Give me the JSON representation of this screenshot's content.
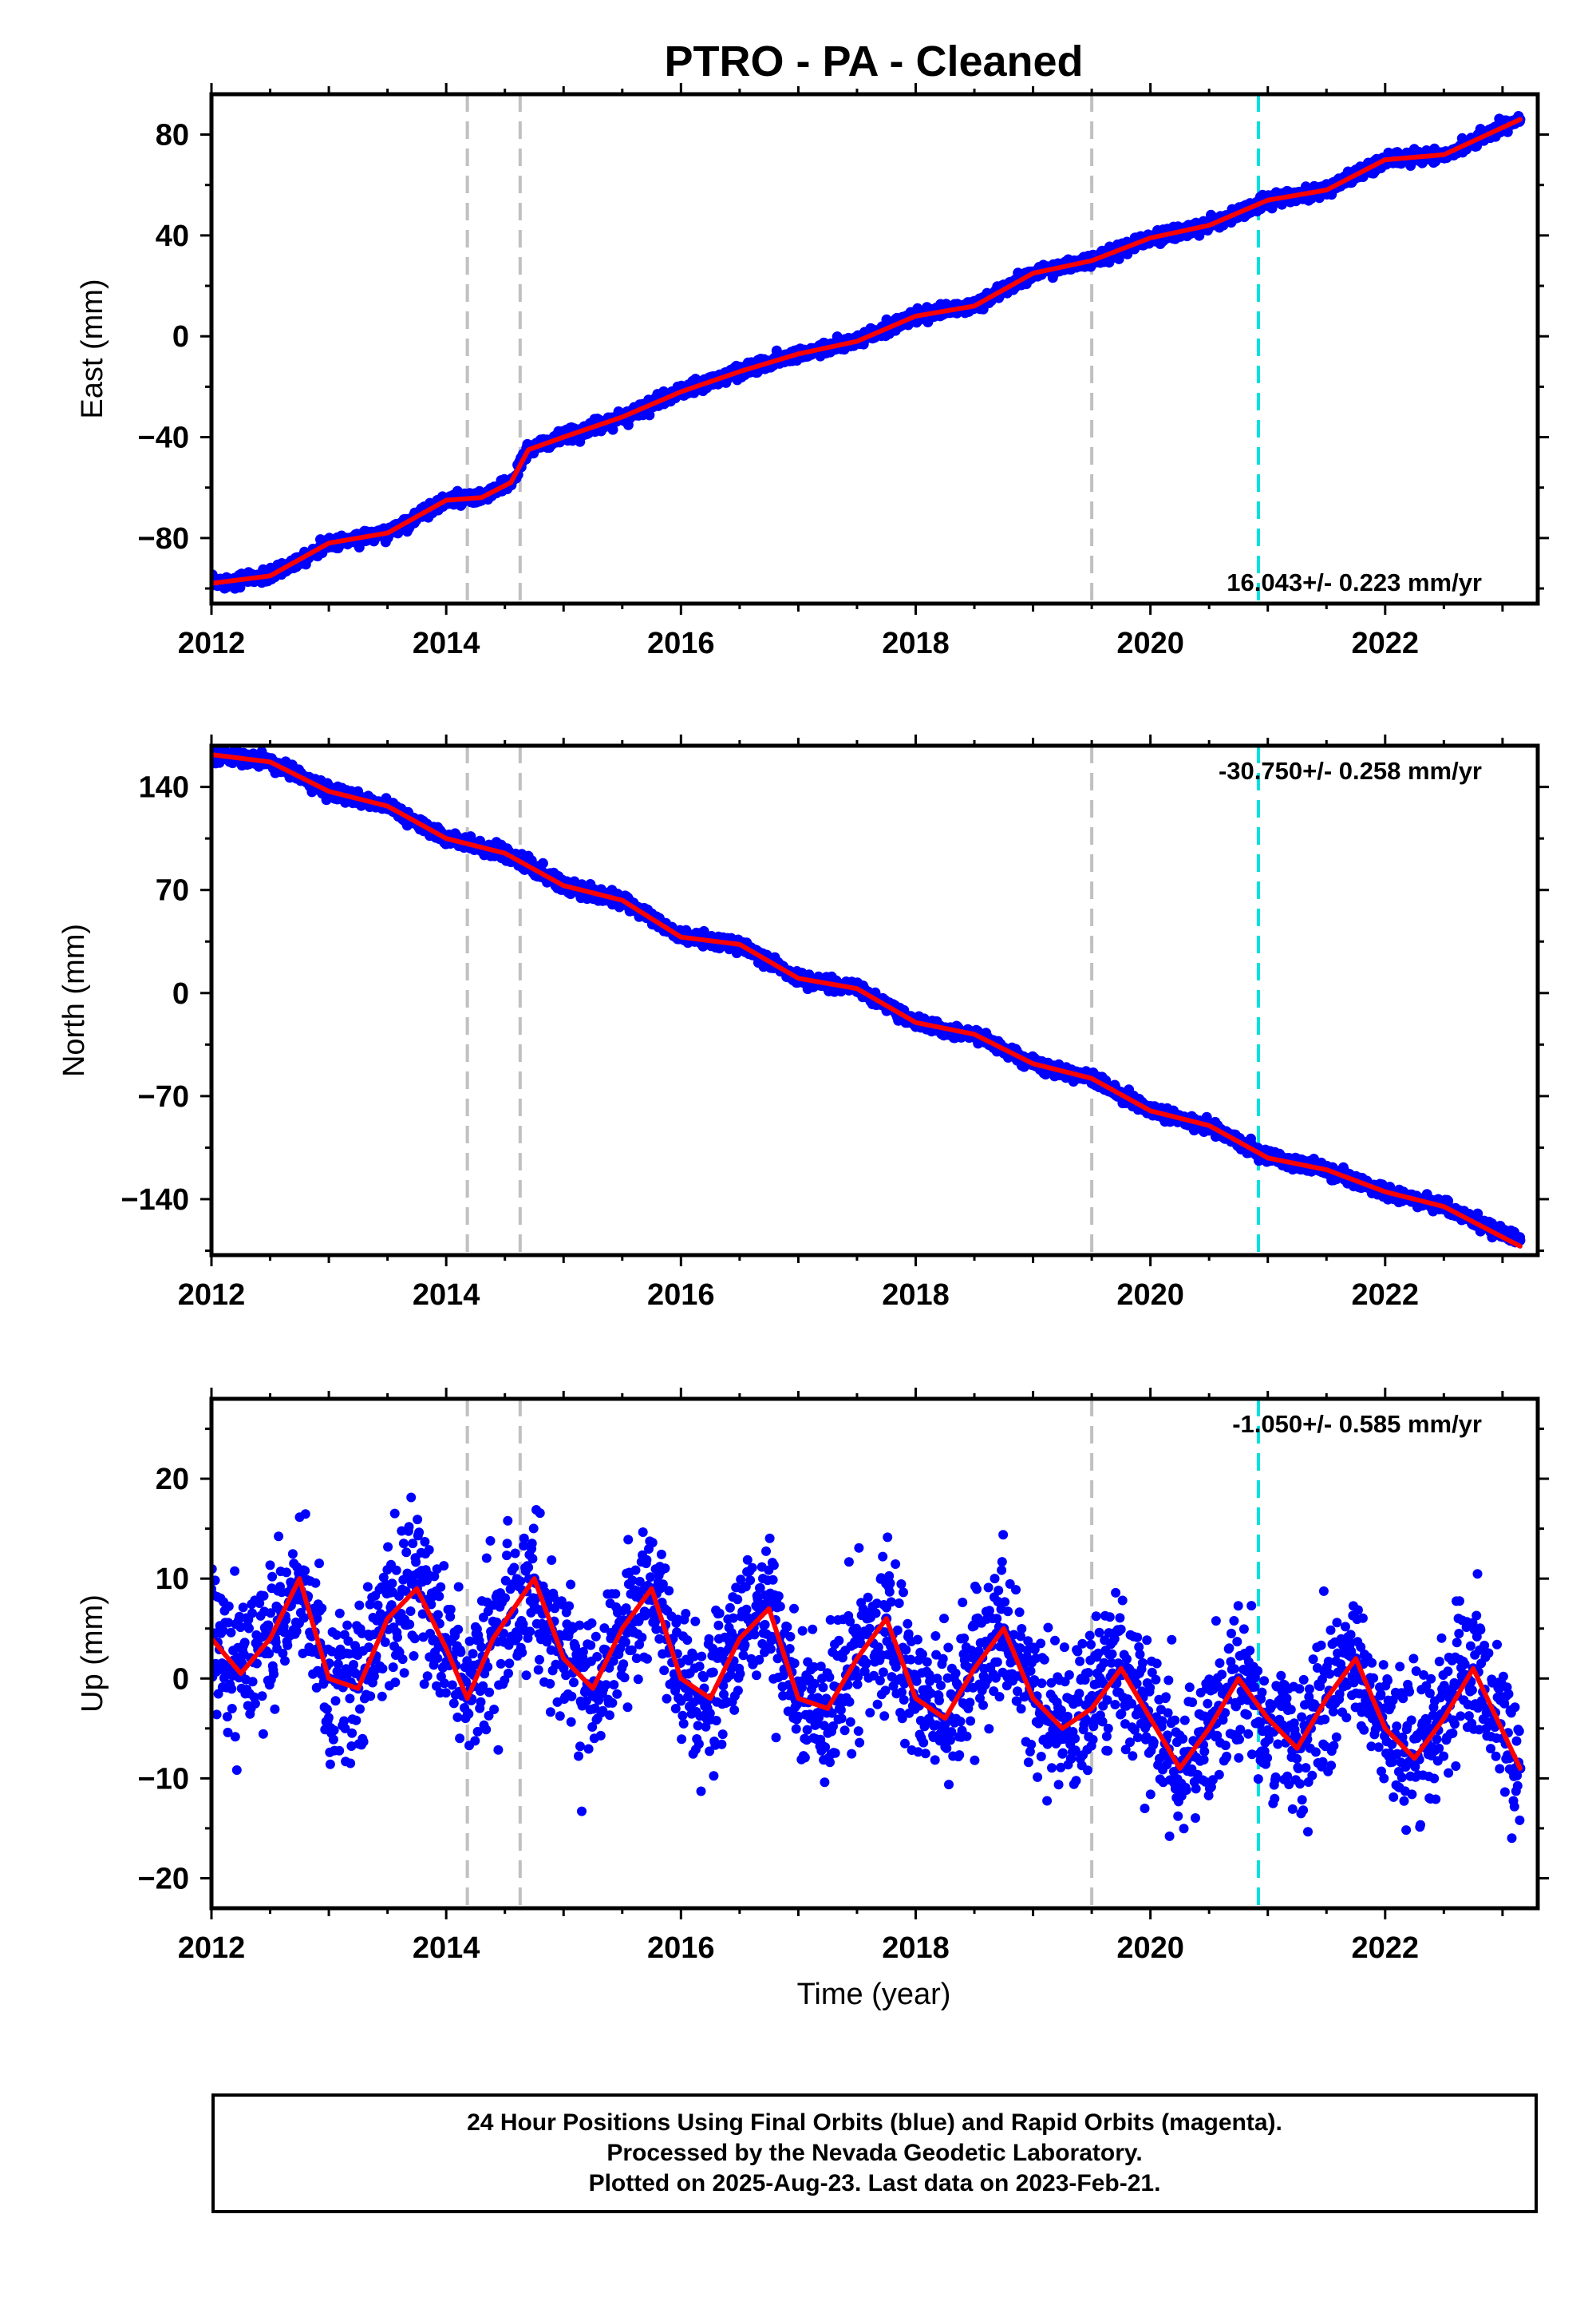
{
  "chart_data": {
    "title": "PTRO  - PA - Cleaned",
    "type": "scatter",
    "xlabel": "Time (year)",
    "xlim": [
      2012,
      2023.3
    ],
    "xticks": [
      2012,
      2014,
      2016,
      2018,
      2020,
      2022
    ],
    "event_lines": [
      {
        "x": 2014.18,
        "color": "#c0c0c0",
        "style": "dashed"
      },
      {
        "x": 2014.63,
        "color": "#c0c0c0",
        "style": "dashed"
      },
      {
        "x": 2019.5,
        "color": "#c0c0c0",
        "style": "dashed"
      },
      {
        "x": 2020.92,
        "color": "#00e0e0",
        "style": "dashed"
      }
    ],
    "colors": {
      "points": "#0000ff",
      "model": "#ff0000"
    },
    "panels": [
      {
        "ylabel": "East (mm)",
        "ylim": [
          -106,
          96
        ],
        "yticks": [
          80,
          40,
          0,
          -40,
          -80
        ],
        "ytick_labels": [
          "80",
          "40",
          "0",
          "−40",
          "−80"
        ],
        "rate_label": "16.043+/- 0.223 mm/yr",
        "rate_position": "bottom-right",
        "series": [
          {
            "type": "scatter",
            "x": [
              2012.0,
              2012.5,
              2013.0,
              2013.5,
              2014.0,
              2014.3,
              2014.55,
              2014.7,
              2015.0,
              2015.5,
              2016.0,
              2016.5,
              2017.0,
              2017.5,
              2018.0,
              2018.5,
              2019.0,
              2019.5,
              2020.0,
              2020.5,
              2021.0,
              2021.5,
              2022.0,
              2022.5,
              2023.15
            ],
            "y": [
              -98,
              -95,
              -82,
              -78,
              -65,
              -64,
              -58,
              -45,
              -40,
              -32,
              -22,
              -14,
              -7,
              -2,
              8,
              12,
              25,
              30,
              39,
              44,
              54,
              58,
              70,
              72,
              86
            ]
          },
          {
            "type": "line",
            "x": [
              2012.0,
              2012.5,
              2013.0,
              2013.5,
              2014.0,
              2014.3,
              2014.55,
              2014.7,
              2015.0,
              2015.5,
              2016.0,
              2016.5,
              2017.0,
              2017.5,
              2018.0,
              2018.5,
              2019.0,
              2019.5,
              2020.0,
              2020.5,
              2021.0,
              2021.5,
              2022.0,
              2022.5,
              2023.15
            ],
            "y": [
              -98,
              -95,
              -82,
              -78,
              -65,
              -64,
              -58,
              -45,
              -40,
              -32,
              -22,
              -14,
              -7,
              -2,
              8,
              12,
              25,
              30,
              39,
              44,
              54,
              58,
              70,
              72,
              86
            ]
          }
        ]
      },
      {
        "ylabel": "North (mm)",
        "ylim": [
          -178,
          168
        ],
        "yticks": [
          140,
          70,
          0,
          -70,
          -140
        ],
        "ytick_labels": [
          "140",
          "70",
          "0",
          "−70",
          "−140"
        ],
        "rate_label": "-30.750+/- 0.258 mm/yr",
        "rate_position": "top-right",
        "series": [
          {
            "type": "scatter",
            "x": [
              2012.0,
              2012.5,
              2013.0,
              2013.5,
              2014.0,
              2014.5,
              2015.0,
              2015.5,
              2016.0,
              2016.5,
              2017.0,
              2017.5,
              2018.0,
              2018.5,
              2019.0,
              2019.5,
              2020.0,
              2020.5,
              2021.0,
              2021.5,
              2022.0,
              2022.5,
              2023.15
            ],
            "y": [
              162,
              157,
              137,
              127,
              105,
              95,
              73,
              63,
              38,
              33,
              10,
              3,
              -20,
              -28,
              -48,
              -58,
              -80,
              -90,
              -112,
              -120,
              -135,
              -145,
              -168
            ]
          },
          {
            "type": "line",
            "x": [
              2012.0,
              2012.5,
              2013.0,
              2013.5,
              2014.0,
              2014.5,
              2015.0,
              2015.5,
              2016.0,
              2016.5,
              2017.0,
              2017.5,
              2018.0,
              2018.5,
              2019.0,
              2019.5,
              2020.0,
              2020.5,
              2021.0,
              2021.5,
              2022.0,
              2022.5,
              2023.15
            ],
            "y": [
              162,
              157,
              137,
              127,
              105,
              95,
              73,
              63,
              38,
              33,
              10,
              3,
              -20,
              -28,
              -48,
              -58,
              -80,
              -90,
              -112,
              -120,
              -135,
              -145,
              -172
            ]
          }
        ]
      },
      {
        "ylabel": "Up (mm)",
        "ylim": [
          -23,
          28
        ],
        "yticks": [
          20,
          10,
          0,
          -10,
          -20
        ],
        "ytick_labels": [
          "20",
          "10",
          "0",
          "−10",
          "−20"
        ],
        "rate_label": "-1.050+/- 0.585 mm/yr",
        "rate_position": "top-right",
        "series": [
          {
            "type": "scatter",
            "x": [
              2012.0,
              2012.25,
              2012.5,
              2012.75,
              2013.0,
              2013.25,
              2013.5,
              2013.75,
              2014.0,
              2014.18,
              2014.4,
              2014.75,
              2015.0,
              2015.25,
              2015.5,
              2015.75,
              2016.0,
              2016.25,
              2016.5,
              2016.75,
              2017.0,
              2017.25,
              2017.5,
              2017.75,
              2018.0,
              2018.25,
              2018.5,
              2018.75,
              2019.0,
              2019.25,
              2019.5,
              2019.75,
              2020.0,
              2020.25,
              2020.5,
              2020.75,
              2021.0,
              2021.25,
              2021.5,
              2021.75,
              2022.0,
              2022.25,
              2022.5,
              2022.75,
              2023.15
            ],
            "y": [
              4,
              0.5,
              4,
              10,
              0,
              -1,
              6,
              9,
              3,
              -2,
              4,
              10,
              2,
              -1,
              5,
              9,
              0,
              -2,
              4,
              7,
              -2,
              -3,
              2,
              6,
              -2,
              -4,
              1,
              5,
              -2,
              -5,
              -3,
              1,
              -4,
              -9,
              -5,
              0,
              -4,
              -7,
              -2,
              2,
              -5,
              -8,
              -4,
              1,
              -9
            ]
          },
          {
            "type": "line",
            "x": [
              2012.0,
              2012.25,
              2012.5,
              2012.75,
              2013.0,
              2013.25,
              2013.5,
              2013.75,
              2014.0,
              2014.18,
              2014.4,
              2014.75,
              2015.0,
              2015.25,
              2015.5,
              2015.75,
              2016.0,
              2016.25,
              2016.5,
              2016.75,
              2017.0,
              2017.25,
              2017.5,
              2017.75,
              2018.0,
              2018.25,
              2018.5,
              2018.75,
              2019.0,
              2019.25,
              2019.5,
              2019.75,
              2020.0,
              2020.25,
              2020.5,
              2020.75,
              2021.0,
              2021.25,
              2021.5,
              2021.75,
              2022.0,
              2022.25,
              2022.5,
              2022.75,
              2023.15
            ],
            "y": [
              4,
              0.5,
              4,
              10,
              0,
              -1,
              6,
              9,
              3,
              -2,
              4,
              10,
              2,
              -1,
              5,
              9,
              0,
              -2,
              4,
              7,
              -2,
              -3,
              2,
              6,
              -2,
              -4,
              1,
              5,
              -2,
              -5,
              -3,
              1,
              -4,
              -9,
              -5,
              0,
              -4,
              -7,
              -2,
              2,
              -5,
              -8,
              -4,
              1,
              -9
            ]
          }
        ]
      }
    ]
  },
  "footer": {
    "line1": "24 Hour Positions Using Final Orbits (blue) and Rapid Orbits (magenta).",
    "line2": "Processed by the Nevada Geodetic Laboratory.",
    "line3": "Plotted on 2025-Aug-23. Last data on 2023-Feb-21."
  }
}
